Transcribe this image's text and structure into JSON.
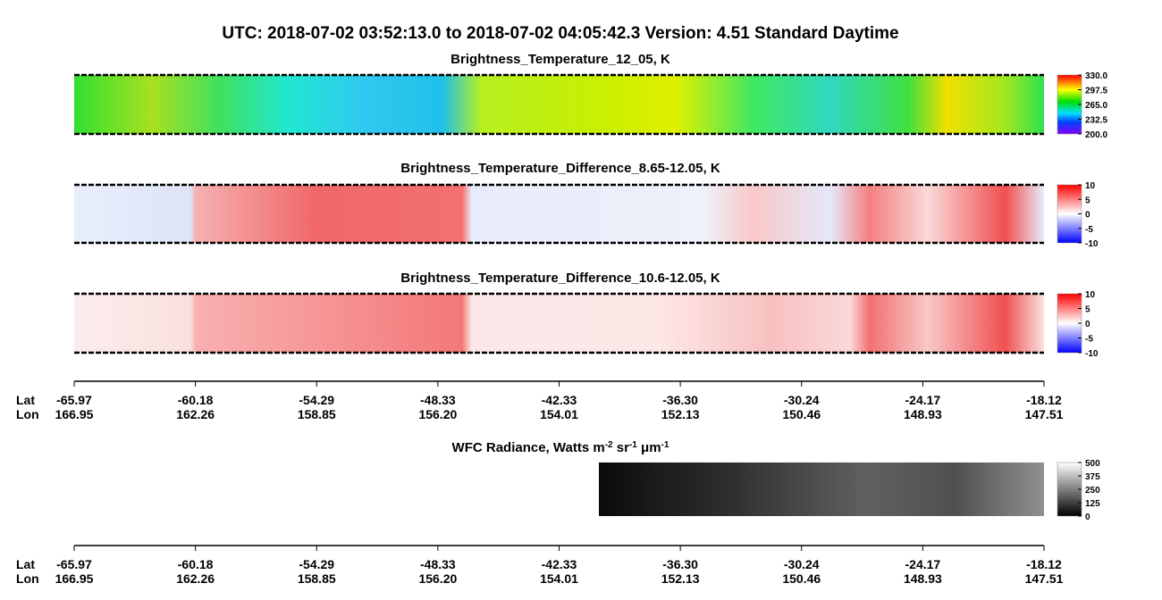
{
  "title": "UTC:  2018-07-02   03:52:13.0  to  2018-07-02   04:05:42.3    Version: 4.51  Standard Daytime",
  "panels": [
    {
      "title": "Brightness_Temperature_12_05, K",
      "colorbar": {
        "lim": [
          200,
          330
        ],
        "ticks": [
          {
            "value": 330,
            "label": "330.0"
          },
          297.5,
          {
            "value": 265,
            "label": "265.0"
          },
          232.5,
          {
            "value": 200,
            "label": "200.0"
          }
        ]
      }
    },
    {
      "title": "Brightness_Temperature_Difference_8.65-12.05, K",
      "colorbar": {
        "lim": [
          -10,
          10
        ],
        "ticks": [
          10,
          5,
          0,
          -5,
          -10
        ]
      }
    },
    {
      "title": "Brightness_Temperature_Difference_10.6-12.05, K",
      "colorbar": {
        "lim": [
          -10,
          10
        ],
        "ticks": [
          10,
          5,
          0,
          -5,
          -10
        ]
      }
    },
    {
      "title": [
        "WFC Radiance, Watts m",
        "-2",
        " sr",
        "-1",
        " μm",
        "-1"
      ],
      "colorbar": {
        "lim": [
          0,
          500
        ],
        "ticks": [
          500,
          375,
          250,
          125,
          0
        ]
      }
    }
  ],
  "axes": [
    {
      "lat_label": "Lat",
      "lon_label": "Lon",
      "lat": [
        -65.97,
        -60.18,
        -54.29,
        -48.33,
        -42.33,
        {
          "value": -36.3,
          "label": "-36.30"
        },
        -30.24,
        -24.17,
        -18.12
      ],
      "lon": [
        166.95,
        162.26,
        158.85,
        {
          "value": 156.2,
          "label": "156.20"
        },
        154.01,
        152.13,
        150.46,
        148.93,
        147.51
      ]
    },
    {
      "lat_label": "Lat",
      "lon_label": "Lon",
      "lat": [
        -65.97,
        -60.18,
        -54.29,
        -48.33,
        -42.33,
        {
          "value": -36.3,
          "label": "-36.30"
        },
        -30.24,
        -24.17,
        -18.12
      ],
      "lon": [
        166.95,
        162.26,
        158.85,
        {
          "value": 156.2,
          "label": "156.20"
        },
        154.01,
        152.13,
        150.46,
        148.93,
        147.51
      ]
    }
  ]
}
